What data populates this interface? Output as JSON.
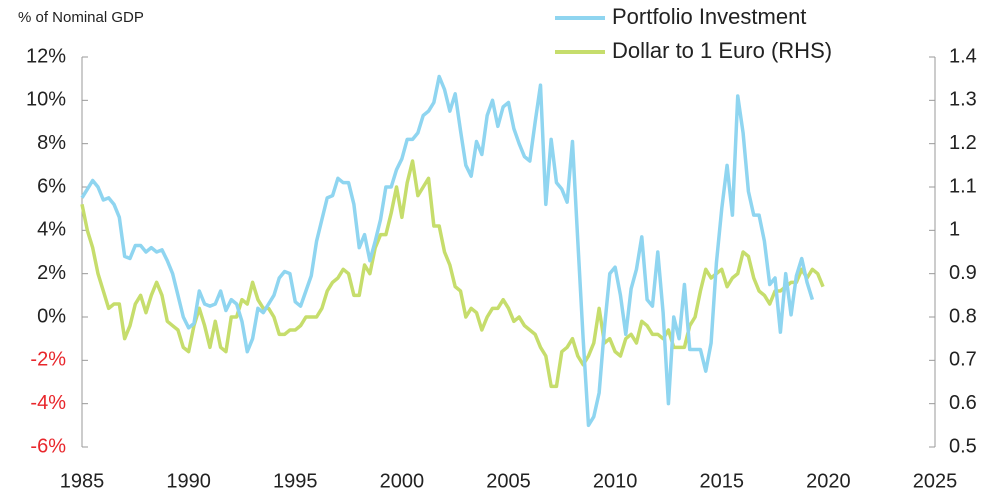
{
  "chart_data": {
    "type": "line",
    "title": "% of Nominal GDP",
    "x": [
      1985,
      1985.25,
      1985.5,
      1985.75,
      1986,
      1986.25,
      1986.5,
      1986.75,
      1987,
      1987.25,
      1987.5,
      1987.75,
      1988,
      1988.25,
      1988.5,
      1988.75,
      1989,
      1989.25,
      1989.5,
      1989.75,
      1990,
      1990.25,
      1990.5,
      1990.75,
      1991,
      1991.25,
      1991.5,
      1991.75,
      1992,
      1992.25,
      1992.5,
      1992.75,
      1993,
      1993.25,
      1993.5,
      1993.75,
      1994,
      1994.25,
      1994.5,
      1994.75,
      1995,
      1995.25,
      1995.5,
      1995.75,
      1996,
      1996.25,
      1996.5,
      1996.75,
      1997,
      1997.25,
      1997.5,
      1997.75,
      1998,
      1998.25,
      1998.5,
      1998.75,
      1999,
      1999.25,
      1999.5,
      1999.75,
      2000,
      2000.25,
      2000.5,
      2000.75,
      2001,
      2001.25,
      2001.5,
      2001.75,
      2002,
      2002.25,
      2002.5,
      2002.75,
      2003,
      2003.25,
      2003.5,
      2003.75,
      2004,
      2004.25,
      2004.5,
      2004.75,
      2005,
      2005.25,
      2005.5,
      2005.75,
      2006,
      2006.25,
      2006.5,
      2006.75,
      2007,
      2007.25,
      2007.5,
      2007.75,
      2008,
      2008.25,
      2008.5,
      2008.75,
      2009,
      2009.25,
      2009.5,
      2009.75,
      2010,
      2010.25,
      2010.5,
      2010.75,
      2011,
      2011.25,
      2011.5,
      2011.75,
      2012,
      2012.25,
      2012.5,
      2012.75,
      2013,
      2013.25,
      2013.5,
      2013.75,
      2014,
      2014.25,
      2014.5,
      2014.75,
      2015,
      2015.25,
      2015.5,
      2015.75,
      2016,
      2016.25,
      2016.5,
      2016.75,
      2017,
      2017.25,
      2017.5,
      2017.75,
      2018,
      2018.25,
      2018.5,
      2018.75,
      2019,
      2019.25,
      2019.5,
      2019.75
    ],
    "series": [
      {
        "name": "Portfolio Investment",
        "color": "#8fd5f0",
        "axis": "y",
        "values": [
          5.5,
          5.9,
          6.3,
          6.0,
          5.4,
          5.5,
          5.2,
          4.6,
          2.8,
          2.7,
          3.3,
          3.3,
          3.0,
          3.2,
          3.0,
          3.1,
          2.6,
          2.0,
          1.0,
          0.0,
          -0.5,
          -0.3,
          1.2,
          0.6,
          0.5,
          0.6,
          1.2,
          0.3,
          0.8,
          0.6,
          -0.2,
          -1.6,
          -1.0,
          0.4,
          0.2,
          0.6,
          1.0,
          1.8,
          2.1,
          2.0,
          0.7,
          0.5,
          1.2,
          1.9,
          3.5,
          4.5,
          5.5,
          5.6,
          6.4,
          6.2,
          6.2,
          5.2,
          3.2,
          3.8,
          2.6,
          3.5,
          4.5,
          6.0,
          6.0,
          6.8,
          7.3,
          8.2,
          8.2,
          8.5,
          9.3,
          9.5,
          9.9,
          11.1,
          10.5,
          9.5,
          10.3,
          8.6,
          7.0,
          6.5,
          8.1,
          7.5,
          9.3,
          10.0,
          8.8,
          9.7,
          9.9,
          8.7,
          8.0,
          7.4,
          7.2,
          9.0,
          10.7,
          5.2,
          8.2,
          6.2,
          5.9,
          5.3,
          8.1,
          3.5,
          -1.0,
          -5.0,
          -4.6,
          -3.5,
          -0.5,
          2.0,
          2.3,
          1.0,
          -0.8,
          1.3,
          2.2,
          3.7,
          0.8,
          0.5,
          3.0,
          0.2,
          -4.0,
          0.0,
          -1.0,
          1.5,
          -1.5,
          -1.5,
          -1.5,
          -2.5,
          -1.2,
          2.5,
          5.0,
          7.0,
          4.7,
          10.2,
          8.5,
          5.8,
          4.7,
          4.7,
          3.5,
          1.5,
          1.8,
          -0.7,
          2.0,
          0.1,
          1.9,
          2.7,
          1.6,
          0.8,
          null,
          null
        ]
      },
      {
        "name": "Dollar to 1 Euro (RHS)",
        "color": "#c6dd6c",
        "axis": "y2",
        "values": [
          1.06,
          1.0,
          0.96,
          0.9,
          0.86,
          0.82,
          0.83,
          0.83,
          0.75,
          0.78,
          0.83,
          0.85,
          0.81,
          0.85,
          0.88,
          0.85,
          0.79,
          0.78,
          0.77,
          0.73,
          0.72,
          0.78,
          0.82,
          0.78,
          0.73,
          0.79,
          0.73,
          0.72,
          0.8,
          0.8,
          0.84,
          0.83,
          0.88,
          0.84,
          0.82,
          0.82,
          0.8,
          0.76,
          0.76,
          0.77,
          0.77,
          0.78,
          0.8,
          0.8,
          0.8,
          0.82,
          0.86,
          0.88,
          0.89,
          0.91,
          0.9,
          0.85,
          0.85,
          0.92,
          0.9,
          0.96,
          0.99,
          0.99,
          1.04,
          1.1,
          1.03,
          1.11,
          1.16,
          1.08,
          1.1,
          1.12,
          1.01,
          1.01,
          0.95,
          0.92,
          0.87,
          0.86,
          0.8,
          0.82,
          0.81,
          0.77,
          0.8,
          0.82,
          0.82,
          0.84,
          0.82,
          0.79,
          0.8,
          0.78,
          0.77,
          0.76,
          0.73,
          0.71,
          0.64,
          0.64,
          0.72,
          0.73,
          0.75,
          0.71,
          0.69,
          0.71,
          0.74,
          0.82,
          0.74,
          0.75,
          0.72,
          0.71,
          0.75,
          0.76,
          0.74,
          0.79,
          0.78,
          0.76,
          0.76,
          0.75,
          0.77,
          0.73,
          0.73,
          0.73,
          0.78,
          0.8,
          0.86,
          0.91,
          0.89,
          0.9,
          0.91,
          0.87,
          0.89,
          0.9,
          0.95,
          0.94,
          0.89,
          0.86,
          0.85,
          0.83,
          0.86,
          0.86,
          0.87,
          0.88,
          0.88,
          0.91,
          0.89,
          0.91,
          0.9,
          0.87
        ]
      }
    ],
    "xlim": [
      1985,
      2025
    ],
    "xticks": [
      1985,
      1990,
      1995,
      2000,
      2005,
      2010,
      2015,
      2020,
      2025
    ],
    "ylim": [
      -6,
      12
    ],
    "yticks": [
      {
        "value": -6,
        "label": "-6%"
      },
      {
        "value": -4,
        "label": "-4%"
      },
      {
        "value": -2,
        "label": "-2%"
      },
      {
        "value": 0,
        "label": "0%"
      },
      {
        "value": 2,
        "label": "2%"
      },
      {
        "value": 4,
        "label": "4%"
      },
      {
        "value": 6,
        "label": "6%"
      },
      {
        "value": 8,
        "label": "8%"
      },
      {
        "value": 10,
        "label": "10%"
      },
      {
        "value": 12,
        "label": "12%"
      }
    ],
    "y2lim": [
      0.5,
      1.4
    ],
    "y2ticks": [
      0.5,
      0.6,
      0.7,
      0.8,
      0.9,
      1,
      1.1,
      1.2,
      1.3,
      1.4
    ],
    "negative_tick_color": "#e8262b",
    "grid": false
  }
}
